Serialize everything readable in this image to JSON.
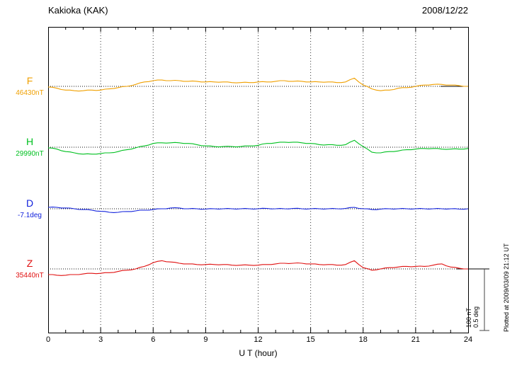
{
  "chart_data": {
    "type": "line",
    "title": "Kakioka (KAK)",
    "date": "2008/12/22",
    "xlabel": "U T (hour)",
    "xlim": [
      0,
      24
    ],
    "x_ticks": [
      0,
      3,
      6,
      9,
      12,
      15,
      18,
      21,
      24
    ],
    "x_step_hours": 0.5,
    "grid": "dotted vertical at ticks, dotted baseline per trace",
    "scale_division": {
      "nT": 100,
      "deg": 0.5
    },
    "series": [
      {
        "name": "F",
        "baseline_label": "46430nT",
        "baseline_value": 46430,
        "unit": "nT",
        "color": "#f0a000",
        "offsets": [
          -1,
          -3,
          -6,
          -7,
          -7,
          -6,
          -6,
          -4,
          -2,
          0,
          3,
          7,
          9,
          10,
          9,
          9,
          8,
          8,
          7,
          7,
          7,
          6,
          6,
          6,
          7,
          7,
          8,
          9,
          8,
          8,
          7,
          7,
          7,
          6,
          7,
          13,
          2,
          -4,
          -7,
          -6,
          -3,
          -2,
          0,
          2,
          3,
          3,
          2,
          1,
          0
        ]
      },
      {
        "name": "H",
        "baseline_label": "29990nT",
        "baseline_value": 29990,
        "unit": "nT",
        "color": "#00c020",
        "offsets": [
          -1,
          -3,
          -7,
          -9,
          -11,
          -11,
          -10,
          -9,
          -7,
          -4,
          -1,
          2,
          6,
          7,
          7,
          7,
          6,
          4,
          2,
          1,
          1,
          1,
          1,
          2,
          3,
          6,
          7,
          8,
          8,
          7,
          6,
          4,
          4,
          3,
          4,
          11,
          1,
          -8,
          -9,
          -7,
          -6,
          -4,
          -3,
          -2,
          -2,
          -3,
          -3,
          -3,
          -2
        ]
      },
      {
        "name": "D",
        "baseline_label": "-7.1deg",
        "baseline_value": -7.1,
        "unit": "deg",
        "color": "#1020dc",
        "offsets": [
          0.011,
          0.011,
          0.006,
          0,
          -0.006,
          -0.011,
          -0.02,
          -0.028,
          -0.028,
          -0.022,
          -0.017,
          -0.011,
          -0.006,
          0,
          0.006,
          0.006,
          0,
          0,
          -0.003,
          0,
          0,
          0,
          0,
          0,
          0,
          0.003,
          0,
          0,
          0.003,
          0,
          0,
          0,
          0,
          0,
          0.003,
          0.011,
          0,
          -0.006,
          -0.003,
          0,
          0,
          0,
          0,
          0,
          0,
          0,
          0,
          -0.003,
          0
        ]
      },
      {
        "name": "Z",
        "baseline_label": "35440nT",
        "baseline_value": 35440,
        "unit": "nT",
        "color": "#e01010",
        "offsets": [
          -9,
          -10,
          -10,
          -9,
          -8,
          -7,
          -7,
          -6,
          -4,
          -2,
          0,
          4,
          10,
          13,
          11,
          9,
          8,
          7,
          7,
          7,
          7,
          6,
          6,
          6,
          6,
          7,
          8,
          9,
          9,
          9,
          8,
          7,
          7,
          6,
          7,
          13,
          2,
          -2,
          0,
          2,
          3,
          4,
          4,
          4,
          6,
          8,
          3,
          1,
          0
        ]
      }
    ]
  },
  "scale_bar": {
    "label_nt": "100 nT",
    "label_deg": "0.5 deg"
  },
  "footer": {
    "plotted_at": "Plotted at 2009/03/09 21:12 UT"
  }
}
